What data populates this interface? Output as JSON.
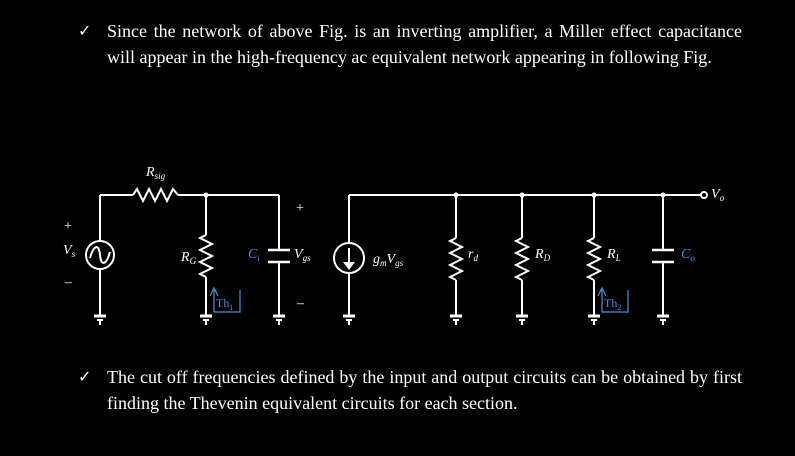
{
  "bullets": [
    {
      "mark": "✓",
      "text": "Since the network of above Fig. is an inverting amplifier, a Miller effect capacitance will appear in the high-frequency ac equivalent network appearing in following Fig."
    },
    {
      "mark": "✓",
      "text": "The cut off frequencies defined by the input and output circuits can be obtained by first finding the Thevenin equivalent circuits for each section."
    }
  ],
  "circuit": {
    "source": {
      "name": "V",
      "sub": "s",
      "plus": "+",
      "minus": "–"
    },
    "rsig": {
      "name": "R",
      "sub": "sig"
    },
    "rg": {
      "name": "R",
      "sub": "G"
    },
    "ci": {
      "name": "C",
      "sub": "i"
    },
    "vgs": {
      "name": "V",
      "sub": "gs",
      "plus": "+",
      "minus": "–"
    },
    "gm": {
      "name": "g",
      "sub1": "m",
      "name2": "V",
      "sub2": "gs"
    },
    "rd": {
      "name": "r",
      "sub": "d"
    },
    "rD": {
      "name": "R",
      "sub": "D"
    },
    "rL": {
      "name": "R",
      "sub": "L"
    },
    "co": {
      "name": "C",
      "sub": "o"
    },
    "vo": {
      "name": "V",
      "sub": "o"
    },
    "th1": {
      "name": "Th",
      "sub": "1"
    },
    "th2": {
      "name": "Th",
      "sub": "2"
    }
  },
  "colors": {
    "background": "#000000",
    "wire": "#ffffff",
    "accent": "#4a8fd6"
  }
}
